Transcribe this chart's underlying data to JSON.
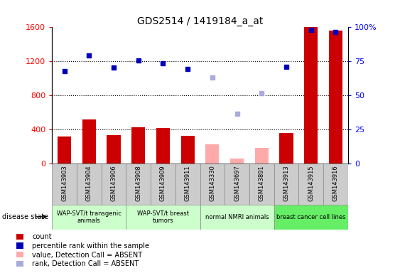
{
  "title": "GDS2514 / 1419184_a_at",
  "samples": [
    "GSM143903",
    "GSM143904",
    "GSM143906",
    "GSM143908",
    "GSM143909",
    "GSM143911",
    "GSM143330",
    "GSM143697",
    "GSM143891",
    "GSM143913",
    "GSM143915",
    "GSM143916"
  ],
  "count_present": [
    320,
    520,
    340,
    430,
    420,
    330,
    null,
    null,
    null,
    360,
    1600,
    1560
  ],
  "count_absent": [
    null,
    null,
    null,
    null,
    null,
    null,
    230,
    65,
    185,
    null,
    null,
    null
  ],
  "rank_present": [
    1090,
    1270,
    1130,
    1210,
    1175,
    1115,
    null,
    null,
    null,
    1140,
    1570,
    1545
  ],
  "rank_absent": [
    null,
    null,
    null,
    null,
    null,
    null,
    1010,
    590,
    830,
    null,
    null,
    null
  ],
  "ylim_left": [
    0,
    1600
  ],
  "ylim_right": [
    0,
    100
  ],
  "yticks_left": [
    0,
    400,
    800,
    1200,
    1600
  ],
  "yticks_right": [
    0,
    25,
    50,
    75,
    100
  ],
  "bar_color_present": "#cc0000",
  "bar_color_absent": "#ffaaaa",
  "rank_color_present": "#0000bb",
  "rank_color_absent": "#aaaadd",
  "groups": [
    {
      "label": "WAP-SVT/t transgenic\nanimals",
      "start": 0,
      "end": 2,
      "color": "#ccffcc"
    },
    {
      "label": "WAP-SVT/t breast\ntumors",
      "start": 3,
      "end": 5,
      "color": "#ccffcc"
    },
    {
      "label": "normal NMRI animals",
      "start": 6,
      "end": 8,
      "color": "#ccffcc"
    },
    {
      "label": "breast cancer cell lines",
      "start": 9,
      "end": 11,
      "color": "#66ee66"
    }
  ],
  "legend_items": [
    {
      "color": "#cc0000",
      "label": "count"
    },
    {
      "color": "#0000bb",
      "label": "percentile rank within the sample"
    },
    {
      "color": "#ffaaaa",
      "label": "value, Detection Call = ABSENT"
    },
    {
      "color": "#aaaadd",
      "label": "rank, Detection Call = ABSENT"
    }
  ]
}
